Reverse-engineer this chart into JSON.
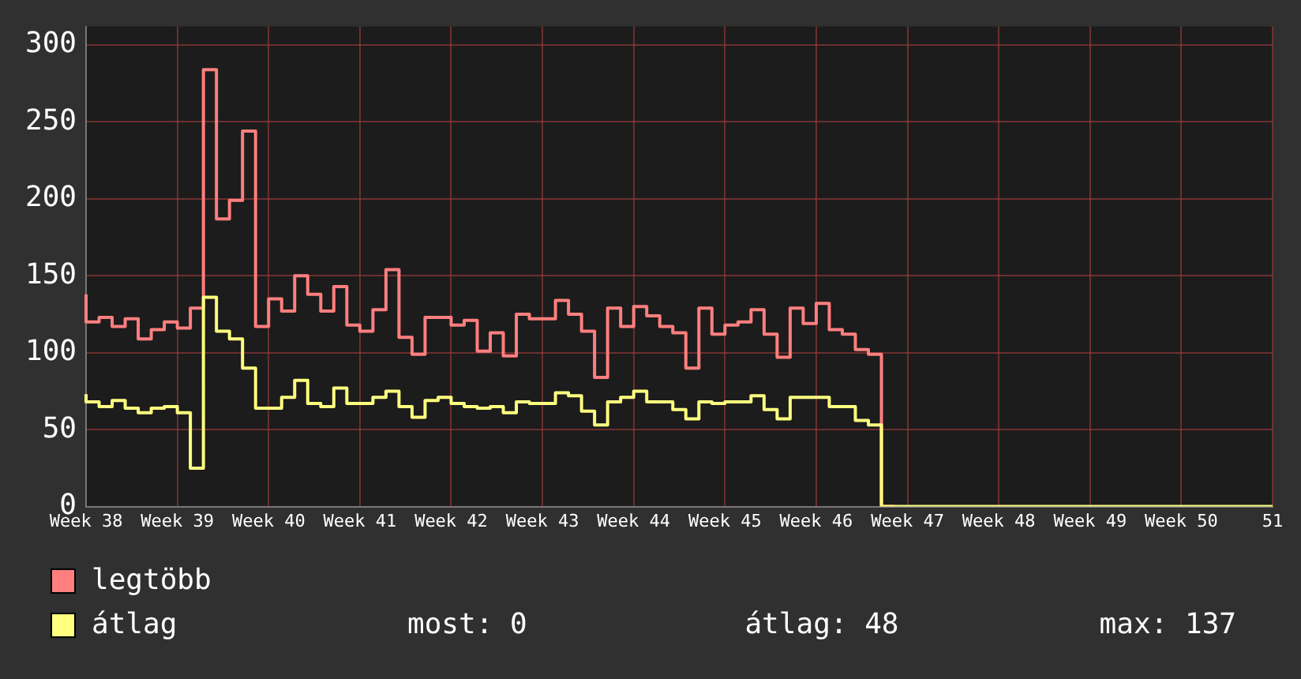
{
  "chart_data": {
    "type": "step",
    "categories": [
      "Week 38",
      null,
      null,
      null,
      null,
      null,
      null,
      "Week 39",
      null,
      null,
      null,
      null,
      null,
      null,
      "Week 40",
      null,
      null,
      null,
      null,
      null,
      null,
      "Week 41",
      null,
      null,
      null,
      null,
      null,
      null,
      "Week 42",
      null,
      null,
      null,
      null,
      null,
      null,
      "Week 43",
      null,
      null,
      null,
      null,
      null,
      null,
      "Week 44",
      null,
      null,
      null,
      null,
      null,
      null,
      "Week 45",
      null,
      null,
      null,
      null,
      null,
      null,
      "Week 46",
      null,
      null,
      null,
      null,
      null,
      null,
      "Week 47",
      null,
      null,
      null,
      null,
      null,
      null,
      "Week 48",
      null,
      null,
      null,
      null,
      null,
      null,
      "Week 49",
      null,
      null,
      null,
      null,
      null,
      null,
      "Week 50",
      null,
      null,
      null,
      null,
      null,
      null,
      "51"
    ],
    "series": [
      {
        "name": "legtöbb",
        "color": "#ff7f7f",
        "values": [
          138,
          120,
          123,
          117,
          122,
          109,
          115,
          120,
          116,
          129,
          284,
          187,
          199,
          244,
          117,
          135,
          127,
          150,
          138,
          127,
          143,
          118,
          114,
          128,
          154,
          110,
          99,
          123,
          123,
          118,
          121,
          101,
          113,
          98,
          125,
          122,
          122,
          134,
          125,
          114,
          84,
          129,
          117,
          130,
          124,
          117,
          113,
          90,
          129,
          112,
          118,
          120,
          128,
          112,
          97,
          129,
          119,
          132,
          115,
          112,
          102,
          99,
          0,
          null,
          null,
          null,
          null,
          null,
          null,
          null,
          null,
          null,
          null,
          null,
          null,
          null,
          null,
          null,
          null,
          null,
          null,
          null,
          null,
          null,
          null,
          null,
          null,
          null,
          null,
          null,
          null,
          null
        ]
      },
      {
        "name": "átlag",
        "color": "#ffff80",
        "values": [
          73,
          68,
          65,
          69,
          64,
          61,
          64,
          65,
          61,
          25,
          136,
          114,
          109,
          90,
          64,
          64,
          71,
          82,
          67,
          65,
          77,
          67,
          67,
          71,
          75,
          65,
          58,
          69,
          71,
          67,
          65,
          64,
          65,
          61,
          68,
          67,
          67,
          74,
          72,
          62,
          53,
          68,
          71,
          75,
          68,
          68,
          63,
          57,
          68,
          67,
          68,
          68,
          72,
          63,
          57,
          71,
          71,
          71,
          65,
          65,
          56,
          53,
          0,
          0,
          0,
          0,
          0,
          0,
          0,
          0,
          0,
          0,
          0,
          0,
          0,
          0,
          0,
          0,
          0,
          0,
          0,
          0,
          0,
          0,
          0,
          0,
          0,
          0,
          0,
          0,
          0,
          0
        ]
      }
    ],
    "ylim": [
      0,
      312
    ],
    "yticks": [
      0,
      50,
      100,
      150,
      200,
      250,
      300
    ],
    "grid": true,
    "legend": "bottom",
    "annotations": [
      "most: 0",
      "átlag: 48",
      "max: 137"
    ]
  }
}
